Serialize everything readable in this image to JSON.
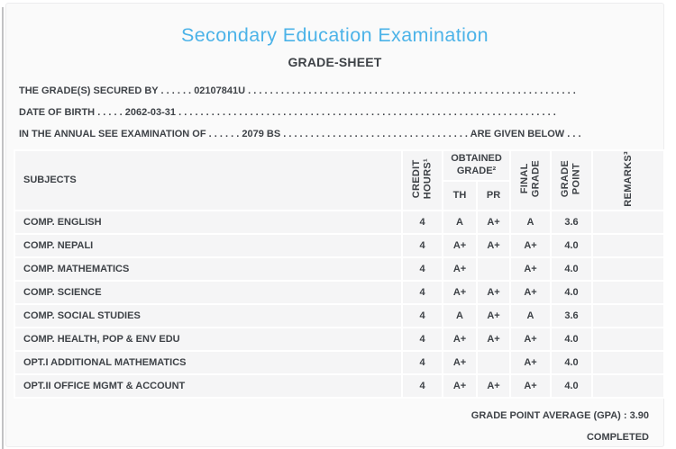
{
  "header": {
    "title": "Secondary Education Examination",
    "subtitle": "GRADE-SHEET"
  },
  "info_lines": {
    "secured_by": {
      "label": "THE GRADE(S) SECURED BY",
      "dots_before": ". . . . . .",
      "value": "02107841U",
      "dots_after": ". . . . . . . . . . . . . . . . . . . . . . . . . . . . . . . . . . . . . . . . . . . . . . . . . . . . . . . . . . . ."
    },
    "date_of_birth": {
      "label": "DATE OF BIRTH",
      "dots_before": ". . . . .",
      "value": "2062-03-31",
      "dots_after": ". . . . . . . . . . . . . . . . . . . . . . . . . . . . . . . . . . . . . . . . . . . . . . . . . . . . . . . . . . . . . . . . . . . . ."
    },
    "examination_of": {
      "label": "IN THE ANNUAL SEE EXAMINATION OF",
      "dots_before": ". . . . . .",
      "value": "2079 BS",
      "dots_middle": ". . . . . . . . . . . . . . . . . . . . . . . . . . . . . . . . . .",
      "suffix": "ARE GIVEN BELOW",
      "dots_after": ". . ."
    }
  },
  "table": {
    "headers": {
      "subjects": "SUBJECTS",
      "credit_hours_line1": "CREDIT",
      "credit_hours_line2": "HOURS¹",
      "obtained_grade_line1": "OBTAINED",
      "obtained_grade_line2": "GRADE²",
      "th": "TH",
      "pr": "PR",
      "final_grade_line1": "FINAL",
      "final_grade_line2": "GRADE",
      "grade_point_line1": "GRADE",
      "grade_point_line2": "POINT",
      "remarks": "REMARKS³"
    },
    "rows": [
      {
        "subject": "COMP. ENGLISH",
        "credit": "4",
        "th": "A",
        "pr": "A+",
        "final": "A",
        "gp": "3.6",
        "remarks": ""
      },
      {
        "subject": "COMP. NEPALI",
        "credit": "4",
        "th": "A+",
        "pr": "A+",
        "final": "A+",
        "gp": "4.0",
        "remarks": ""
      },
      {
        "subject": "COMP. MATHEMATICS",
        "credit": "4",
        "th": "A+",
        "pr": "",
        "final": "A+",
        "gp": "4.0",
        "remarks": ""
      },
      {
        "subject": "COMP. SCIENCE",
        "credit": "4",
        "th": "A+",
        "pr": "A+",
        "final": "A+",
        "gp": "4.0",
        "remarks": ""
      },
      {
        "subject": "COMP. SOCIAL STUDIES",
        "credit": "4",
        "th": "A",
        "pr": "A+",
        "final": "A",
        "gp": "3.6",
        "remarks": ""
      },
      {
        "subject": "COMP. HEALTH, POP & ENV EDU",
        "credit": "4",
        "th": "A+",
        "pr": "A+",
        "final": "A+",
        "gp": "4.0",
        "remarks": ""
      },
      {
        "subject": "OPT.I ADDITIONAL MATHEMATICS",
        "credit": "4",
        "th": "A+",
        "pr": "",
        "final": "A+",
        "gp": "4.0",
        "remarks": ""
      },
      {
        "subject": "OPT.II OFFICE MGMT & ACCOUNT",
        "credit": "4",
        "th": "A+",
        "pr": "A+",
        "final": "A+",
        "gp": "4.0",
        "remarks": ""
      }
    ]
  },
  "footer": {
    "gpa_line": "GRADE POINT AVERAGE (GPA) : 3.90",
    "status": "COMPLETED"
  },
  "colors": {
    "title_blue": "#4cb3e8",
    "text": "#3e4247",
    "card_bg": "#fafafa",
    "cell_bg": "#f5f5f6",
    "grid": "#ffffff"
  }
}
